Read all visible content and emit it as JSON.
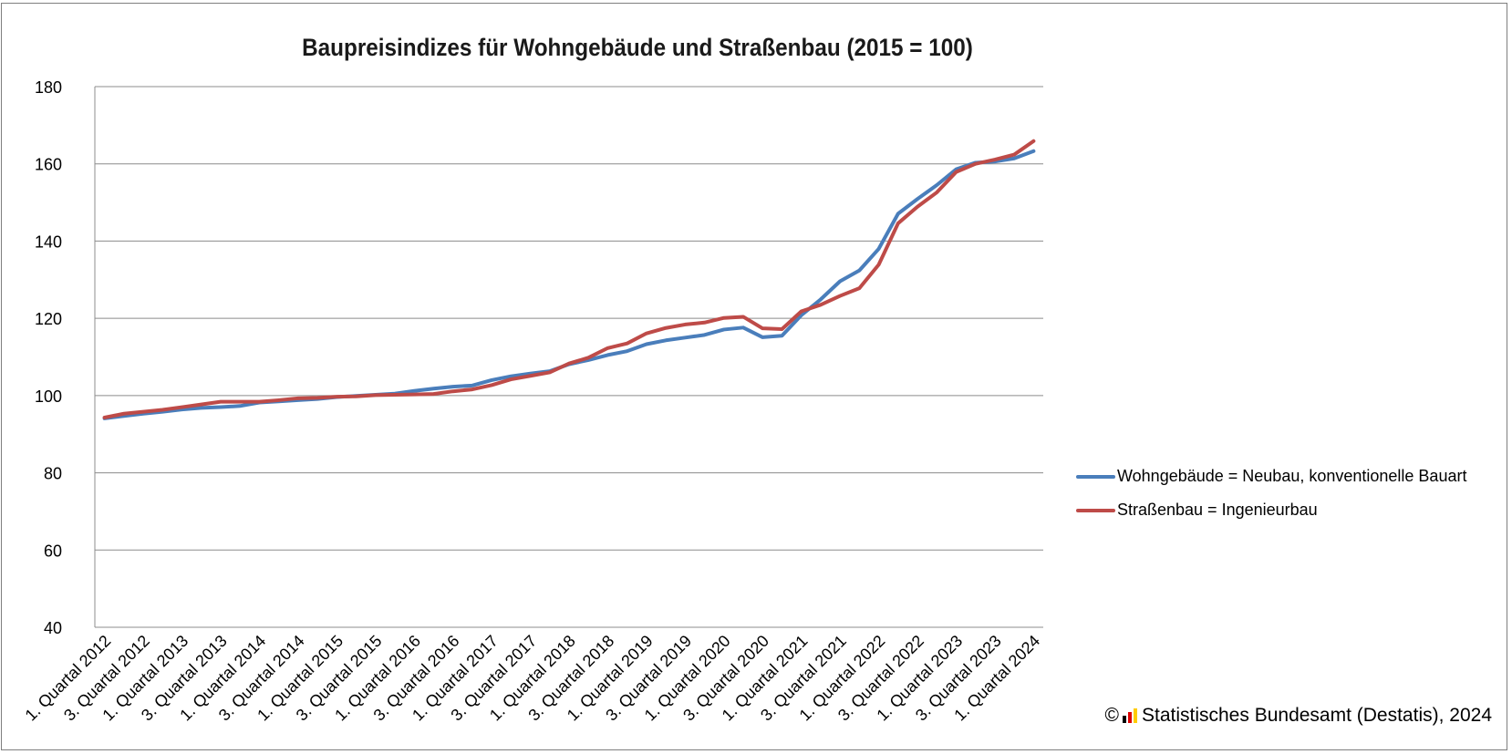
{
  "chart_data": {
    "type": "line",
    "title": "Baupreisindizes für Wohngebäude und Straßenbau (2015 = 100)",
    "xlabel": "",
    "ylabel": "",
    "ylim": [
      40,
      180
    ],
    "yticks": [
      40,
      60,
      80,
      100,
      120,
      140,
      160,
      180
    ],
    "grid": true,
    "legend_position": "right",
    "categories": [
      "1. Quartal 2012",
      "2. Quartal 2012",
      "3. Quartal 2012",
      "4. Quartal 2012",
      "1. Quartal 2013",
      "2. Quartal 2013",
      "3. Quartal 2013",
      "4. Quartal 2013",
      "1. Quartal 2014",
      "2. Quartal 2014",
      "3. Quartal 2014",
      "4. Quartal 2014",
      "1. Quartal 2015",
      "2. Quartal 2015",
      "3. Quartal 2015",
      "4. Quartal 2015",
      "1. Quartal 2016",
      "2. Quartal 2016",
      "3. Quartal 2016",
      "4. Quartal 2016",
      "1. Quartal 2017",
      "2. Quartal 2017",
      "3. Quartal 2017",
      "4. Quartal 2017",
      "1. Quartal 2018",
      "2. Quartal 2018",
      "3. Quartal 2018",
      "4. Quartal 2018",
      "1. Quartal 2019",
      "2. Quartal 2019",
      "3. Quartal 2019",
      "4. Quartal 2019",
      "1. Quartal 2020",
      "2. Quartal 2020",
      "3. Quartal 2020",
      "4. Quartal 2020",
      "1. Quartal 2021",
      "2. Quartal 2021",
      "3. Quartal 2021",
      "4. Quartal 2021",
      "1. Quartal 2022",
      "2. Quartal 2022",
      "3. Quartal 2022",
      "4. Quartal 2022",
      "1. Quartal 2023",
      "2. Quartal 2023",
      "3. Quartal 2023",
      "4. Quartal 2023",
      "1. Quartal 2024"
    ],
    "tick_labels": [
      "1. Quartal 2012",
      "3. Quartal 2012",
      "1. Quartal 2013",
      "3. Quartal 2013",
      "1. Quartal 2014",
      "3. Quartal 2014",
      "1. Quartal 2015",
      "3. Quartal 2015",
      "1. Quartal 2016",
      "3. Quartal 2016",
      "1. Quartal 2017",
      "3. Quartal 2017",
      "1. Quartal 2018",
      "3. Quartal 2018",
      "1. Quartal 2019",
      "3. Quartal 2019",
      "1. Quartal 2020",
      "3. Quartal 2020",
      "1. Quartal 2021",
      "3. Quartal 2021",
      "1. Quartal 2022",
      "3. Quartal 2022",
      "1. Quartal 2023",
      "3. Quartal 2023",
      "1. Quartal 2024"
    ],
    "series": [
      {
        "name": "Wohngebäude = Neubau, konventionelle Bauart",
        "color": "#4a7ebb",
        "values": [
          94.1,
          94.7,
          95.3,
          95.8,
          96.4,
          96.8,
          97.0,
          97.3,
          98.2,
          98.5,
          98.8,
          99.1,
          99.6,
          99.9,
          100.2,
          100.5,
          101.2,
          101.8,
          102.3,
          102.6,
          104.0,
          105.0,
          105.7,
          106.3,
          108.1,
          109.2,
          110.5,
          111.5,
          113.3,
          114.3,
          115.0,
          115.7,
          117.1,
          117.6,
          115.1,
          115.5,
          120.8,
          124.9,
          129.6,
          132.4,
          138.0,
          147.1,
          150.9,
          154.5,
          158.6,
          160.3,
          160.6,
          161.4,
          163.3
        ]
      },
      {
        "name": "Straßenbau = Ingenieurbau",
        "color": "#be4b48",
        "values": [
          94.3,
          95.3,
          95.8,
          96.3,
          97.0,
          97.7,
          98.4,
          98.4,
          98.4,
          98.8,
          99.3,
          99.4,
          99.7,
          99.8,
          100.1,
          100.2,
          100.3,
          100.4,
          101.1,
          101.6,
          102.7,
          104.2,
          105.1,
          106.0,
          108.3,
          109.8,
          112.3,
          113.5,
          116.1,
          117.5,
          118.4,
          118.9,
          120.1,
          120.4,
          117.4,
          117.2,
          121.8,
          123.5,
          125.8,
          127.8,
          133.9,
          144.6,
          148.9,
          152.6,
          157.9,
          160.0,
          161.1,
          162.4,
          165.9
        ]
      }
    ]
  },
  "credit": {
    "copyright_symbol": "©",
    "logo_icon": "destatis-logo-icon",
    "logo_colors": [
      "#000000",
      "#dd0000",
      "#ffcc00"
    ],
    "text": "Statistisches Bundesamt (Destatis), 2024"
  }
}
